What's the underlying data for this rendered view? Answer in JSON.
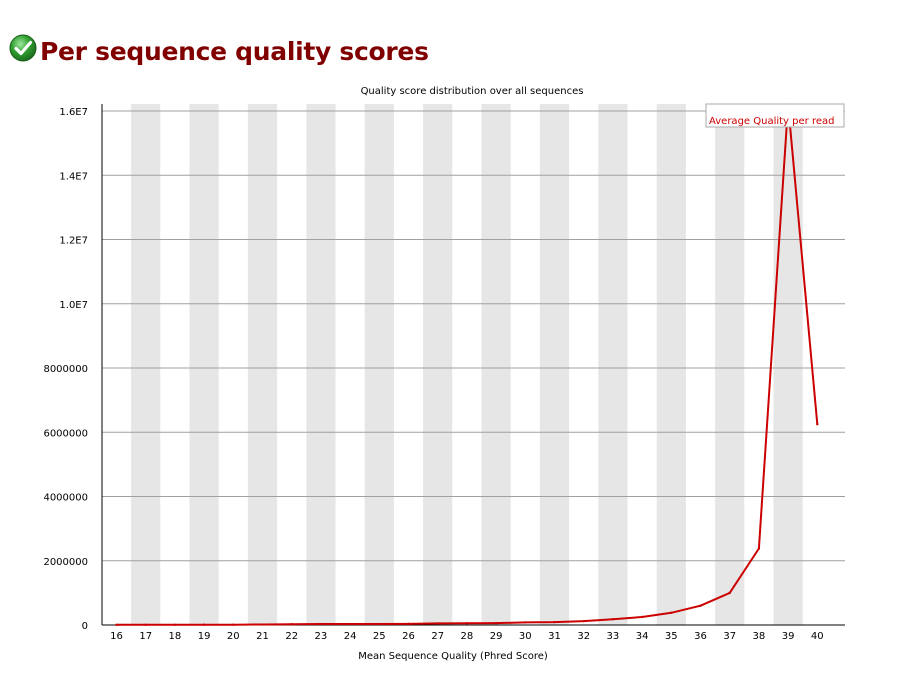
{
  "header": {
    "status_icon": "check-circle-icon",
    "status_color": "#2e9e2e",
    "title": "Per sequence quality scores"
  },
  "chart_data": {
    "type": "line",
    "title": "Quality score distribution over all sequences",
    "xlabel": "Mean Sequence Quality (Phred Score)",
    "ylabel": "",
    "x": [
      16,
      17,
      18,
      19,
      20,
      21,
      22,
      23,
      24,
      25,
      26,
      27,
      28,
      29,
      30,
      31,
      32,
      33,
      34,
      35,
      36,
      37,
      38,
      39,
      40
    ],
    "ylim": [
      0,
      16000000
    ],
    "yticks": [
      0,
      2000000,
      4000000,
      6000000,
      8000000,
      10000000,
      12000000,
      14000000,
      16000000
    ],
    "ytick_labels": [
      "0",
      "2000000",
      "4000000",
      "6000000",
      "8000000",
      "1.0E7",
      "1.2E7",
      "1.4E7",
      "1.6E7"
    ],
    "series": [
      {
        "name": "Average Quality per read",
        "color": "#cc0000",
        "values": [
          5000,
          5000,
          6000,
          8000,
          10000,
          15000,
          25000,
          30000,
          30000,
          30000,
          35000,
          50000,
          55000,
          60000,
          80000,
          90000,
          120000,
          180000,
          250000,
          380000,
          600000,
          1000000,
          2380000,
          16200000,
          6250000
        ]
      }
    ],
    "legend_position": "top-right",
    "grid": true,
    "band_colors": [
      "#ffffff",
      "#e6e6e6"
    ]
  }
}
